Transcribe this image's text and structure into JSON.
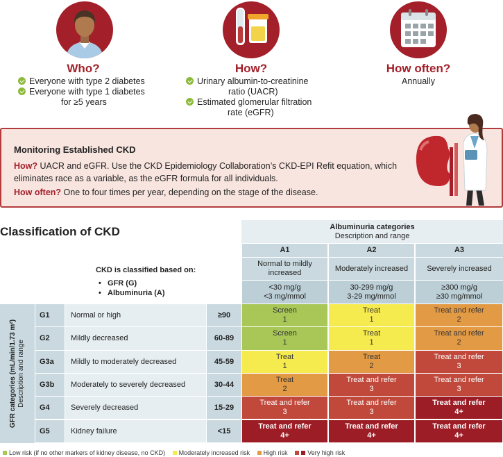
{
  "who": {
    "title": "Who?",
    "items": [
      "Everyone with type 2 diabetes",
      "Everyone with type 1 diabetes",
      "for ≥5 years"
    ]
  },
  "how": {
    "title": "How?",
    "items": [
      "Urinary albumin-to-creatinine",
      "ratio (UACR)",
      "Estimated glomerular filtration",
      "rate (eGFR)"
    ]
  },
  "how_often": {
    "title": "How often?",
    "text": "Annually"
  },
  "monitoring": {
    "title": "Monitoring Established CKD",
    "how_label": "How?",
    "how_text": " UACR and eGFR. Use the CKD Epidemiology Collaboration’s CKD-EPI Refit equation, which eliminates race as a variable, as the eGFR formula for all individuals.",
    "often_label": "How often?",
    "often_text": " One to four times per year, depending on the stage of the disease."
  },
  "classification": {
    "title": "Classification of CKD",
    "based_on": "CKD is classified based on:",
    "criteria": [
      "GFR (G)",
      "Albuminuria (A)"
    ],
    "albuminuria_header": "Albuminuria categories",
    "albuminuria_sub": "Description and range",
    "gfr_axis_1": "GFR categories (mL/min/1.73 m²)",
    "gfr_axis_2": "Description and range",
    "a_cols": [
      {
        "code": "A1",
        "desc": "Normal to mildly increased",
        "range1": "<30 mg/g",
        "range2": "<3 mg/mmol"
      },
      {
        "code": "A2",
        "desc": "Moderately increased",
        "range1": "30-299 mg/g",
        "range2": "3-29 mg/mmol"
      },
      {
        "code": "A3",
        "desc": "Severely increased",
        "range1": "≥300 mg/g",
        "range2": "≥30 mg/mmol"
      }
    ],
    "g_rows": [
      {
        "code": "G1",
        "desc": "Normal or high",
        "range": "≥90"
      },
      {
        "code": "G2",
        "desc": "Mildly decreased",
        "range": "60-89"
      },
      {
        "code": "G3a",
        "desc": "Mildly to moderately decreased",
        "range": "45-59"
      },
      {
        "code": "G3b",
        "desc": "Moderately to severely decreased",
        "range": "30-44"
      },
      {
        "code": "G4",
        "desc": "Severely decreased",
        "range": "15-29"
      },
      {
        "code": "G5",
        "desc": "Kidney failure",
        "range": "<15"
      }
    ],
    "cells": [
      [
        {
          "action": "Screen",
          "freq": "1",
          "risk": "low"
        },
        {
          "action": "Treat",
          "freq": "1",
          "risk": "mod"
        },
        {
          "action": "Treat and refer",
          "freq": "2",
          "risk": "high"
        }
      ],
      [
        {
          "action": "Screen",
          "freq": "1",
          "risk": "low"
        },
        {
          "action": "Treat",
          "freq": "1",
          "risk": "mod"
        },
        {
          "action": "Treat and refer",
          "freq": "2",
          "risk": "high"
        }
      ],
      [
        {
          "action": "Treat",
          "freq": "1",
          "risk": "mod"
        },
        {
          "action": "Treat",
          "freq": "2",
          "risk": "high"
        },
        {
          "action": "Treat and refer",
          "freq": "3",
          "risk": "vhigh1"
        }
      ],
      [
        {
          "action": "Treat",
          "freq": "2",
          "risk": "high"
        },
        {
          "action": "Treat and refer",
          "freq": "3",
          "risk": "vhigh1"
        },
        {
          "action": "Treat and refer",
          "freq": "3",
          "risk": "vhigh1"
        }
      ],
      [
        {
          "action": "Treat and refer",
          "freq": "3",
          "risk": "vhigh1"
        },
        {
          "action": "Treat and refer",
          "freq": "3",
          "risk": "vhigh1"
        },
        {
          "action": "Treat and refer",
          "freq": "4+",
          "risk": "vhigh2"
        }
      ],
      [
        {
          "action": "Treat and refer",
          "freq": "4+",
          "risk": "vhigh2"
        },
        {
          "action": "Treat and refer",
          "freq": "4+",
          "risk": "vhigh2"
        },
        {
          "action": "Treat and refer",
          "freq": "4+",
          "risk": "vhigh2"
        }
      ]
    ]
  },
  "legend": [
    {
      "label": "Low risk (if no other markers of kidney disease, no CKD)",
      "colors": [
        "#a8c757"
      ]
    },
    {
      "label": "Moderately increased risk",
      "colors": [
        "#f5ea4e"
      ]
    },
    {
      "label": "High risk",
      "colors": [
        "#e39a44"
      ]
    },
    {
      "label": "Very high risk",
      "colors": [
        "#c1493b",
        "#9c1d26"
      ]
    }
  ],
  "colors": {
    "accent": "#a3202a",
    "check": "#8dba3a"
  }
}
